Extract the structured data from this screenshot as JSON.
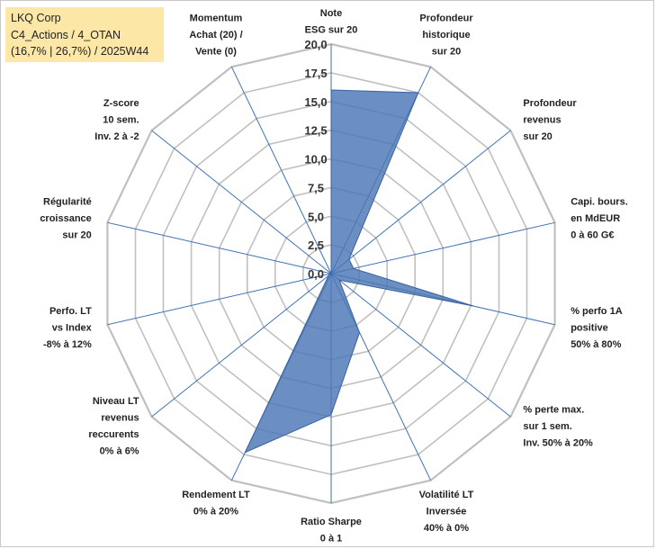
{
  "info_box": {
    "company": "LKQ Corp",
    "portfolio": "C4_Actions / 4_OTAN",
    "summary": "(16,7% | 26,7%) / 2025W44"
  },
  "chart_data": {
    "type": "radar",
    "title": "",
    "rmin": 0,
    "rmax": 20,
    "ticks": [
      "0,0",
      "2,5",
      "5,0",
      "7,5",
      "10,0",
      "12,5",
      "15,0",
      "17,5",
      "20,0"
    ],
    "axes": [
      {
        "label": [
          "Note",
          "ESG sur 20"
        ],
        "value": 16
      },
      {
        "label": [
          "Profondeur",
          "historique",
          "sur 20"
        ],
        "value": 17.5
      },
      {
        "label": [
          "Profondeur",
          "revenus",
          "sur 20"
        ],
        "value": 2
      },
      {
        "label": [
          "Capi. bours.",
          "en MdEUR",
          "0 à 60 G€"
        ],
        "value": 2
      },
      {
        "label": [
          "% perfo 1A",
          "positive",
          "50% à 80%"
        ],
        "value": 12.7
      },
      {
        "label": [
          "% perte max.",
          "sur 1 sem.",
          "Inv. 50% à 20%"
        ],
        "value": 0.9
      },
      {
        "label": [
          "Volatilité LT",
          "Inversée",
          "40% à 0%"
        ],
        "value": 5.7
      },
      {
        "label": [
          "Ratio Sharpe",
          "0 à 1"
        ],
        "value": 12.3
      },
      {
        "label": [
          "Rendement LT",
          "0% à 20%"
        ],
        "value": 17.3
      },
      {
        "label": [
          "Niveau LT",
          "revenus",
          "reccurents",
          "0% à 6%"
        ],
        "value": 0.3
      },
      {
        "label": [
          "Perfo. LT",
          "vs Index",
          "-8% à 12%"
        ],
        "value": 0
      },
      {
        "label": [
          "Régularité",
          "croissance",
          "sur 20"
        ],
        "value": 0
      },
      {
        "label": [
          "Z-score",
          "10 sem.",
          "Inv. 2 à -2"
        ],
        "value": 0
      },
      {
        "label": [
          "Momentum",
          "Achat (20) /",
          "Vente (0)"
        ],
        "value": 0
      }
    ],
    "colors": {
      "fill": "#4a76b5",
      "stroke": "#3a62a0",
      "grid": "#c0c0c0",
      "spoke": "#3f72b6"
    }
  }
}
